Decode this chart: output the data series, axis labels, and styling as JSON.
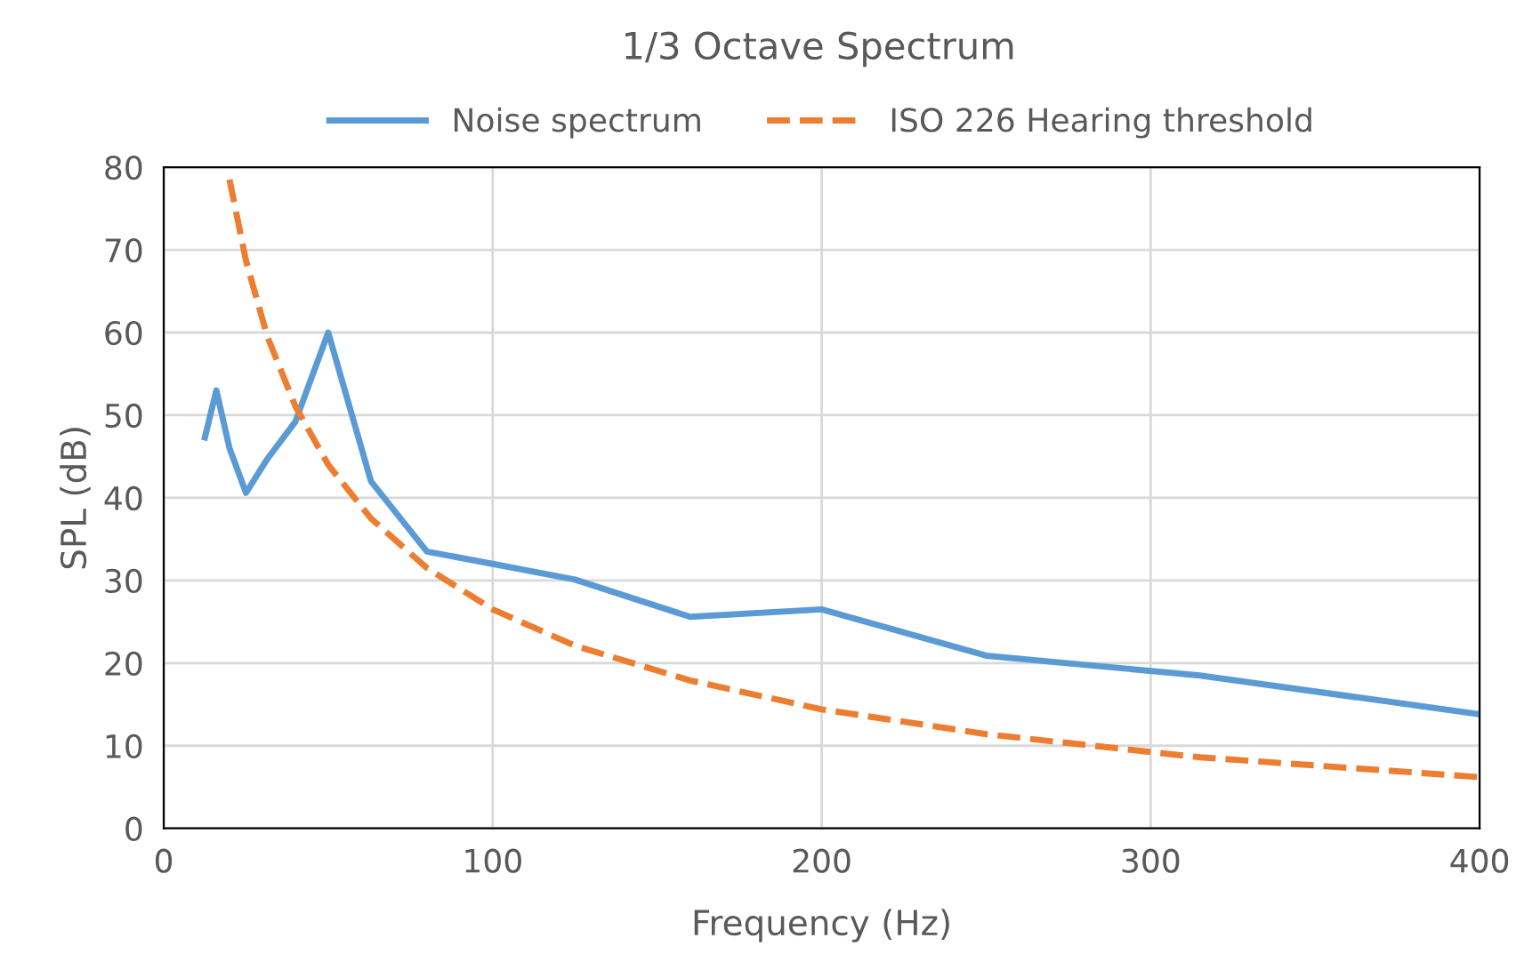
{
  "chart_data": {
    "type": "line",
    "title": "1/3 Octave Spectrum",
    "xlabel": "Frequency (Hz)",
    "ylabel": "SPL (dB)",
    "series": [
      {
        "name": "Noise spectrum",
        "color": "#5b9bd5",
        "line_style": "solid",
        "x": [
          12.5,
          16,
          20,
          25,
          31.5,
          40,
          50,
          63,
          80,
          100,
          125,
          160,
          200,
          250,
          315,
          400
        ],
        "values": [
          47.3,
          53,
          46,
          40.6,
          44.7,
          49.2,
          60,
          42,
          33.5,
          32,
          30.1,
          25.6,
          26.5,
          20.9,
          18.5,
          13.8
        ]
      },
      {
        "name": "ISO 226 Hearing threshold",
        "color": "#ed7d31",
        "line_style": "dashed",
        "x": [
          20,
          25,
          31.5,
          40,
          50,
          63,
          80,
          100,
          125,
          160,
          200,
          250,
          315,
          400
        ],
        "values": [
          78.5,
          68.7,
          59.5,
          51.1,
          44.0,
          37.5,
          31.5,
          26.5,
          22.1,
          17.9,
          14.4,
          11.4,
          8.6,
          6.2
        ]
      }
    ],
    "xlim": [
      0,
      400
    ],
    "xticks": [
      0,
      100,
      200,
      300,
      400
    ],
    "ylim": [
      0,
      80
    ],
    "yticks": [
      0,
      10,
      20,
      30,
      40,
      50,
      60,
      70,
      80
    ],
    "grid": true,
    "legend": "top",
    "marker": "none"
  }
}
